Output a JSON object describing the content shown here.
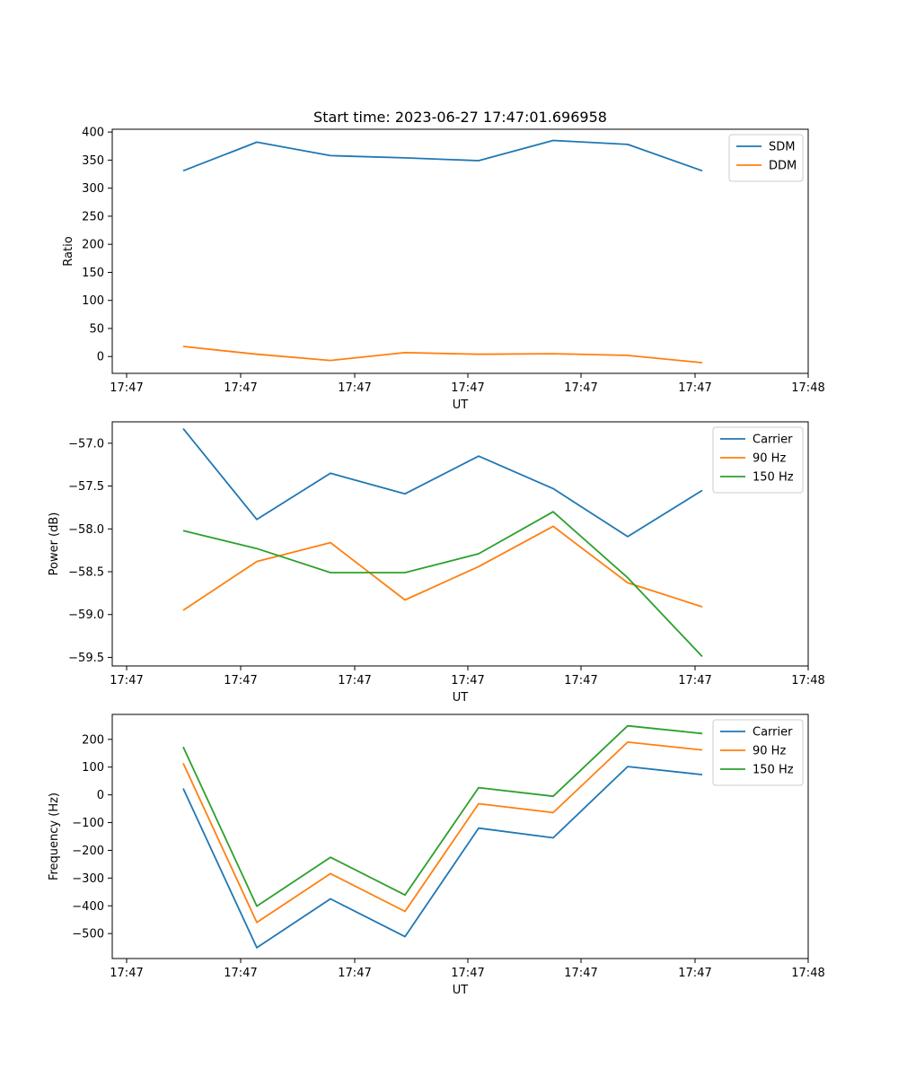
{
  "figure": {
    "title": "Start time: 2023-06-27 17:47:01.696958"
  },
  "chart_data": [
    {
      "type": "line",
      "title": "Start time: 2023-06-27 17:47:01.696958",
      "xlabel": "UT",
      "ylabel": "Ratio",
      "xtick_labels": [
        "17:47",
        "17:47",
        "17:47",
        "17:47",
        "17:47",
        "17:47",
        "17:48"
      ],
      "x": [
        1,
        2,
        3,
        4,
        5,
        6,
        7,
        8
      ],
      "xlim": [
        0,
        9.5
      ],
      "ylim": [
        -30,
        405
      ],
      "yticks": [
        0,
        50,
        100,
        150,
        200,
        250,
        300,
        350,
        400
      ],
      "legend": "top-right",
      "grid": false,
      "series": [
        {
          "name": "SDM",
          "color": "#1f77b4",
          "values": [
            331,
            382,
            358,
            354,
            349,
            385,
            378,
            331
          ]
        },
        {
          "name": "DDM",
          "color": "#ff7f0e",
          "values": [
            18,
            4,
            -7,
            7,
            4,
            5,
            2,
            -11
          ]
        }
      ]
    },
    {
      "type": "line",
      "xlabel": "UT",
      "ylabel": "Power (dB)",
      "xtick_labels": [
        "17:47",
        "17:47",
        "17:47",
        "17:47",
        "17:47",
        "17:47",
        "17:48"
      ],
      "x": [
        1,
        2,
        3,
        4,
        5,
        6,
        7,
        8
      ],
      "xlim": [
        0,
        9.5
      ],
      "ylim": [
        -59.6,
        -56.75
      ],
      "yticks": [
        -57.0,
        -57.5,
        -58.0,
        -58.5,
        -59.0,
        -59.5
      ],
      "ytick_labels": [
        "−57.0",
        "−57.5",
        "−58.0",
        "−58.5",
        "−59.0",
        "−59.5"
      ],
      "legend": "top-right",
      "grid": false,
      "series": [
        {
          "name": "Carrier",
          "color": "#1f77b4",
          "values": [
            -56.83,
            -57.89,
            -57.35,
            -57.59,
            -57.15,
            -57.53,
            -58.09,
            -57.55
          ]
        },
        {
          "name": "90 Hz",
          "color": "#ff7f0e",
          "values": [
            -58.95,
            -58.38,
            -58.16,
            -58.83,
            -58.44,
            -57.97,
            -58.63,
            -58.91
          ]
        },
        {
          "name": "150 Hz",
          "color": "#2ca02c",
          "values": [
            -58.02,
            -58.23,
            -58.51,
            -58.51,
            -58.29,
            -57.8,
            -58.57,
            -59.49
          ]
        }
      ]
    },
    {
      "type": "line",
      "xlabel": "UT",
      "ylabel": "Frequency (Hz)",
      "xtick_labels": [
        "17:47",
        "17:47",
        "17:47",
        "17:47",
        "17:47",
        "17:47",
        "17:48"
      ],
      "x": [
        1,
        2,
        3,
        4,
        5,
        6,
        7,
        8
      ],
      "xlim": [
        0,
        9.5
      ],
      "ylim": [
        -590,
        290
      ],
      "yticks": [
        200,
        100,
        0,
        -100,
        -200,
        -300,
        -400,
        -500
      ],
      "ytick_labels": [
        "200",
        "100",
        "0",
        "−100",
        "−200",
        "−300",
        "−400",
        "−500"
      ],
      "legend": "top-right",
      "grid": false,
      "series": [
        {
          "name": "Carrier",
          "color": "#1f77b4",
          "values": [
            23,
            -551,
            -375,
            -511,
            -120,
            -155,
            102,
            73
          ]
        },
        {
          "name": "90 Hz",
          "color": "#ff7f0e",
          "values": [
            114,
            -460,
            -284,
            -420,
            -32,
            -64,
            190,
            162
          ]
        },
        {
          "name": "150 Hz",
          "color": "#2ca02c",
          "values": [
            173,
            -401,
            -225,
            -361,
            26,
            -5,
            249,
            221
          ]
        }
      ]
    }
  ]
}
